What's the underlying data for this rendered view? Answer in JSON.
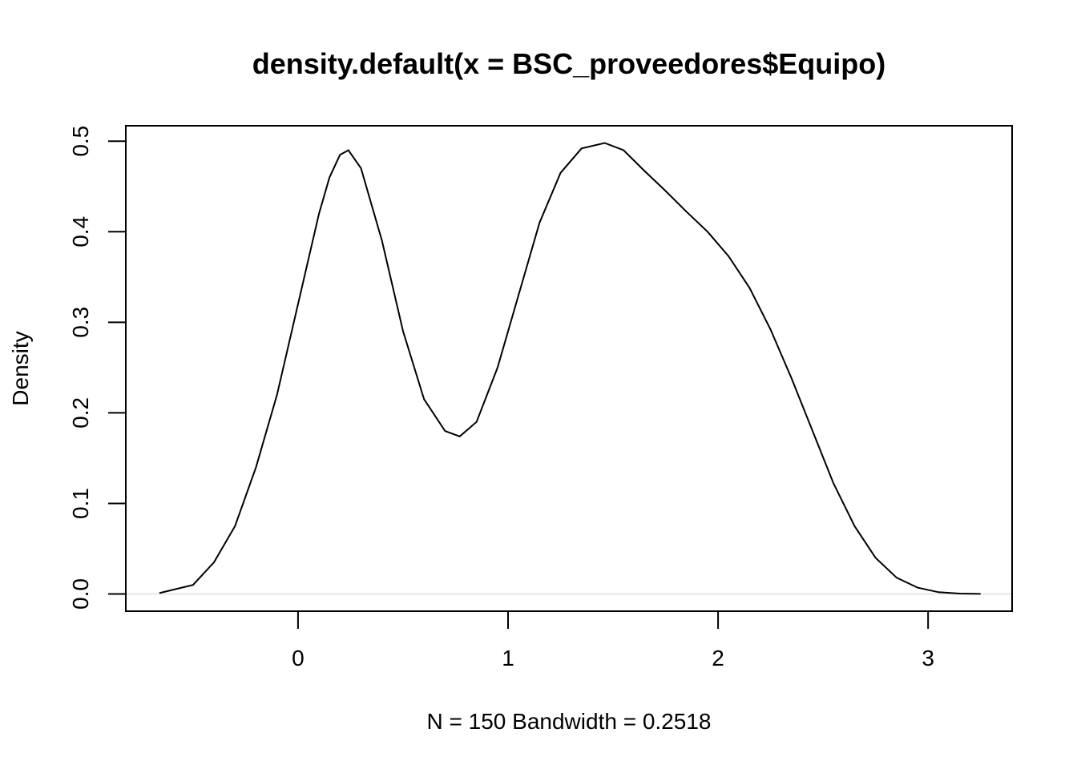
{
  "chart_data": {
    "type": "line",
    "title": "density.default(x = BSC_proveedores$Equipo)",
    "xlabel": "N = 150   Bandwidth = 0.2518",
    "ylabel": "Density",
    "xlim": [
      -0.82,
      3.4
    ],
    "ylim": [
      -0.019,
      0.517
    ],
    "x_ticks": [
      0,
      1,
      2,
      3
    ],
    "x_tick_labels": [
      "0",
      "1",
      "2",
      "3"
    ],
    "y_ticks": [
      0.0,
      0.1,
      0.2,
      0.3,
      0.4,
      0.5
    ],
    "y_tick_labels": [
      "0.0",
      "0.1",
      "0.2",
      "0.3",
      "0.4",
      "0.5"
    ],
    "baseline_y": 0,
    "grid": false,
    "legend": "none",
    "line_color": "#000000",
    "baseline_color": "#e6e6e6",
    "series": [
      {
        "x": [
          -0.66,
          -0.5,
          -0.4,
          -0.3,
          -0.2,
          -0.1,
          0.0,
          0.1,
          0.15,
          0.2,
          0.24,
          0.3,
          0.4,
          0.5,
          0.6,
          0.7,
          0.77,
          0.85,
          0.95,
          1.05,
          1.15,
          1.25,
          1.35,
          1.46,
          1.55,
          1.65,
          1.75,
          1.85,
          1.95,
          2.05,
          2.15,
          2.25,
          2.35,
          2.45,
          2.55,
          2.65,
          2.75,
          2.85,
          2.95,
          3.05,
          3.15,
          3.25
        ],
        "y": [
          0.001,
          0.01,
          0.035,
          0.075,
          0.14,
          0.22,
          0.32,
          0.42,
          0.46,
          0.485,
          0.49,
          0.47,
          0.39,
          0.29,
          0.215,
          0.18,
          0.174,
          0.19,
          0.25,
          0.33,
          0.41,
          0.465,
          0.492,
          0.498,
          0.49,
          0.467,
          0.445,
          0.422,
          0.4,
          0.373,
          0.338,
          0.292,
          0.238,
          0.18,
          0.122,
          0.075,
          0.04,
          0.018,
          0.007,
          0.002,
          0.0005,
          0.0001
        ]
      }
    ]
  }
}
